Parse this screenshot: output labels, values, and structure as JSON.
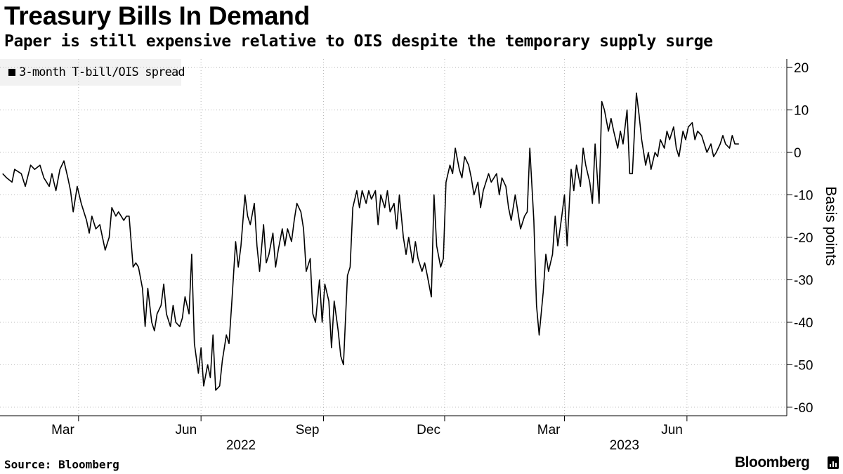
{
  "chart_data": {
    "type": "line",
    "title": "Treasury Bills In Demand",
    "subtitle": "Paper is still expensive relative to OIS despite the temporary supply surge",
    "ylabel": "Basis points",
    "ylim": [
      -62,
      22
    ],
    "y_ticks": [
      -60,
      -50,
      -40,
      -30,
      -20,
      -10,
      0,
      10,
      20
    ],
    "x_range": [
      "2022-01-01",
      "2023-08-15"
    ],
    "x_ticks": [
      {
        "label": "Mar",
        "date": "2022-03-01"
      },
      {
        "label": "Jun",
        "date": "2022-06-01"
      },
      {
        "label": "Sep",
        "date": "2022-09-01"
      },
      {
        "label": "Dec",
        "date": "2022-12-01"
      },
      {
        "label": "Mar",
        "date": "2023-03-01"
      },
      {
        "label": "Jun",
        "date": "2023-06-01"
      }
    ],
    "year_labels": [
      {
        "label": "2022",
        "date": "2022-07-01"
      },
      {
        "label": "2023",
        "date": "2023-04-15"
      }
    ],
    "grid": "vertical dotted + horizontal dotted",
    "legend_position": "top-left",
    "series": [
      {
        "name": "3-month T-bill/OIS spread",
        "color": "#000000",
        "points": [
          [
            "2022-01-03",
            -5
          ],
          [
            "2022-01-06",
            -6
          ],
          [
            "2022-01-10",
            -7
          ],
          [
            "2022-01-12",
            -4
          ],
          [
            "2022-01-17",
            -5
          ],
          [
            "2022-01-20",
            -8
          ],
          [
            "2022-01-24",
            -3
          ],
          [
            "2022-01-27",
            -4
          ],
          [
            "2022-01-31",
            -3
          ],
          [
            "2022-02-03",
            -6
          ],
          [
            "2022-02-07",
            -8
          ],
          [
            "2022-02-09",
            -5
          ],
          [
            "2022-02-12",
            -9
          ],
          [
            "2022-02-15",
            -4
          ],
          [
            "2022-02-18",
            -2
          ],
          [
            "2022-02-21",
            -6
          ],
          [
            "2022-02-23",
            -9
          ],
          [
            "2022-02-25",
            -14
          ],
          [
            "2022-02-28",
            -8
          ],
          [
            "2022-03-03",
            -12
          ],
          [
            "2022-03-07",
            -16
          ],
          [
            "2022-03-09",
            -19
          ],
          [
            "2022-03-11",
            -15
          ],
          [
            "2022-03-14",
            -18
          ],
          [
            "2022-03-17",
            -17
          ],
          [
            "2022-03-21",
            -23
          ],
          [
            "2022-03-24",
            -20
          ],
          [
            "2022-03-26",
            -13
          ],
          [
            "2022-03-29",
            -15
          ],
          [
            "2022-03-31",
            -14
          ],
          [
            "2022-04-04",
            -16
          ],
          [
            "2022-04-06",
            -15
          ],
          [
            "2022-04-08",
            -15
          ],
          [
            "2022-04-11",
            -27
          ],
          [
            "2022-04-13",
            -26
          ],
          [
            "2022-04-15",
            -27
          ],
          [
            "2022-04-18",
            -32
          ],
          [
            "2022-04-20",
            -41
          ],
          [
            "2022-04-22",
            -32
          ],
          [
            "2022-04-25",
            -40
          ],
          [
            "2022-04-27",
            -42
          ],
          [
            "2022-04-29",
            -38
          ],
          [
            "2022-05-02",
            -36
          ],
          [
            "2022-05-04",
            -31
          ],
          [
            "2022-05-06",
            -38
          ],
          [
            "2022-05-09",
            -41
          ],
          [
            "2022-05-11",
            -36
          ],
          [
            "2022-05-13",
            -40
          ],
          [
            "2022-05-16",
            -41
          ],
          [
            "2022-05-18",
            -39
          ],
          [
            "2022-05-20",
            -34
          ],
          [
            "2022-05-23",
            -38
          ],
          [
            "2022-05-25",
            -24
          ],
          [
            "2022-05-27",
            -45
          ],
          [
            "2022-05-30",
            -52
          ],
          [
            "2022-06-01",
            -46
          ],
          [
            "2022-06-03",
            -55
          ],
          [
            "2022-06-06",
            -50
          ],
          [
            "2022-06-08",
            -53
          ],
          [
            "2022-06-10",
            -43
          ],
          [
            "2022-06-12",
            -56
          ],
          [
            "2022-06-15",
            -55
          ],
          [
            "2022-06-17",
            -49
          ],
          [
            "2022-06-20",
            -43
          ],
          [
            "2022-06-22",
            -45
          ],
          [
            "2022-06-24",
            -36
          ],
          [
            "2022-06-27",
            -21
          ],
          [
            "2022-06-29",
            -27
          ],
          [
            "2022-07-01",
            -22
          ],
          [
            "2022-07-04",
            -10
          ],
          [
            "2022-07-06",
            -15
          ],
          [
            "2022-07-08",
            -17
          ],
          [
            "2022-07-11",
            -12
          ],
          [
            "2022-07-13",
            -22
          ],
          [
            "2022-07-15",
            -28
          ],
          [
            "2022-07-18",
            -17
          ],
          [
            "2022-07-20",
            -26
          ],
          [
            "2022-07-22",
            -24
          ],
          [
            "2022-07-25",
            -19
          ],
          [
            "2022-07-27",
            -27
          ],
          [
            "2022-07-29",
            -23
          ],
          [
            "2022-08-01",
            -18
          ],
          [
            "2022-08-03",
            -22
          ],
          [
            "2022-08-05",
            -18
          ],
          [
            "2022-08-08",
            -21
          ],
          [
            "2022-08-10",
            -16
          ],
          [
            "2022-08-12",
            -12
          ],
          [
            "2022-08-15",
            -14
          ],
          [
            "2022-08-17",
            -18
          ],
          [
            "2022-08-19",
            -28
          ],
          [
            "2022-08-22",
            -25
          ],
          [
            "2022-08-24",
            -38
          ],
          [
            "2022-08-26",
            -40
          ],
          [
            "2022-08-29",
            -30
          ],
          [
            "2022-08-31",
            -40
          ],
          [
            "2022-09-02",
            -31
          ],
          [
            "2022-09-05",
            -35
          ],
          [
            "2022-09-07",
            -46
          ],
          [
            "2022-09-09",
            -35
          ],
          [
            "2022-09-12",
            -42
          ],
          [
            "2022-09-14",
            -48
          ],
          [
            "2022-09-16",
            -50
          ],
          [
            "2022-09-19",
            -29
          ],
          [
            "2022-09-21",
            -27
          ],
          [
            "2022-09-23",
            -13
          ],
          [
            "2022-09-26",
            -9
          ],
          [
            "2022-09-28",
            -13
          ],
          [
            "2022-09-30",
            -9
          ],
          [
            "2022-10-03",
            -12
          ],
          [
            "2022-10-05",
            -9
          ],
          [
            "2022-10-07",
            -11
          ],
          [
            "2022-10-10",
            -9
          ],
          [
            "2022-10-12",
            -17
          ],
          [
            "2022-10-14",
            -10
          ],
          [
            "2022-10-17",
            -13
          ],
          [
            "2022-10-19",
            -9
          ],
          [
            "2022-10-21",
            -14
          ],
          [
            "2022-10-24",
            -12
          ],
          [
            "2022-10-26",
            -18
          ],
          [
            "2022-10-28",
            -10
          ],
          [
            "2022-10-31",
            -20
          ],
          [
            "2022-11-02",
            -24
          ],
          [
            "2022-11-04",
            -20
          ],
          [
            "2022-11-07",
            -26
          ],
          [
            "2022-11-09",
            -21
          ],
          [
            "2022-11-11",
            -25
          ],
          [
            "2022-11-14",
            -28
          ],
          [
            "2022-11-16",
            -26
          ],
          [
            "2022-11-18",
            -29
          ],
          [
            "2022-11-21",
            -34
          ],
          [
            "2022-11-23",
            -10
          ],
          [
            "2022-11-25",
            -22
          ],
          [
            "2022-11-28",
            -27
          ],
          [
            "2022-11-30",
            -25
          ],
          [
            "2022-12-02",
            -7
          ],
          [
            "2022-12-05",
            -3
          ],
          [
            "2022-12-07",
            -5
          ],
          [
            "2022-12-09",
            1
          ],
          [
            "2022-12-12",
            -4
          ],
          [
            "2022-12-14",
            -6
          ],
          [
            "2022-12-16",
            -1
          ],
          [
            "2022-12-19",
            -3
          ],
          [
            "2022-12-21",
            -6
          ],
          [
            "2022-12-23",
            -10
          ],
          [
            "2022-12-26",
            -7
          ],
          [
            "2022-12-28",
            -13
          ],
          [
            "2022-12-30",
            -9
          ],
          [
            "2023-01-03",
            -5
          ],
          [
            "2023-01-05",
            -7
          ],
          [
            "2023-01-09",
            -5
          ],
          [
            "2023-01-11",
            -10
          ],
          [
            "2023-01-13",
            -6
          ],
          [
            "2023-01-16",
            -8
          ],
          [
            "2023-01-18",
            -13
          ],
          [
            "2023-01-20",
            -16
          ],
          [
            "2023-01-23",
            -10
          ],
          [
            "2023-01-25",
            -14
          ],
          [
            "2023-01-27",
            -18
          ],
          [
            "2023-01-30",
            -15
          ],
          [
            "2023-02-01",
            -14
          ],
          [
            "2023-02-03",
            1
          ],
          [
            "2023-02-06",
            -16
          ],
          [
            "2023-02-08",
            -36
          ],
          [
            "2023-02-10",
            -43
          ],
          [
            "2023-02-13",
            -33
          ],
          [
            "2023-02-15",
            -24
          ],
          [
            "2023-02-17",
            -28
          ],
          [
            "2023-02-20",
            -24
          ],
          [
            "2023-02-22",
            -15
          ],
          [
            "2023-02-24",
            -22
          ],
          [
            "2023-02-27",
            -15
          ],
          [
            "2023-03-01",
            -10
          ],
          [
            "2023-03-03",
            -22
          ],
          [
            "2023-03-06",
            -4
          ],
          [
            "2023-03-08",
            -9
          ],
          [
            "2023-03-10",
            -3
          ],
          [
            "2023-03-13",
            -8
          ],
          [
            "2023-03-15",
            1
          ],
          [
            "2023-03-17",
            -3
          ],
          [
            "2023-03-20",
            -7
          ],
          [
            "2023-03-22",
            -12
          ],
          [
            "2023-03-24",
            2
          ],
          [
            "2023-03-27",
            -12
          ],
          [
            "2023-03-29",
            12
          ],
          [
            "2023-03-31",
            10
          ],
          [
            "2023-04-03",
            5
          ],
          [
            "2023-04-05",
            8
          ],
          [
            "2023-04-07",
            5
          ],
          [
            "2023-04-10",
            1
          ],
          [
            "2023-04-12",
            5
          ],
          [
            "2023-04-14",
            2
          ],
          [
            "2023-04-17",
            10
          ],
          [
            "2023-04-19",
            -5
          ],
          [
            "2023-04-21",
            -5
          ],
          [
            "2023-04-24",
            14
          ],
          [
            "2023-04-26",
            9
          ],
          [
            "2023-04-28",
            3
          ],
          [
            "2023-05-01",
            -3
          ],
          [
            "2023-05-03",
            0
          ],
          [
            "2023-05-05",
            -4
          ],
          [
            "2023-05-08",
            0
          ],
          [
            "2023-05-10",
            -1
          ],
          [
            "2023-05-12",
            3
          ],
          [
            "2023-05-15",
            1
          ],
          [
            "2023-05-17",
            5
          ],
          [
            "2023-05-19",
            3
          ],
          [
            "2023-05-22",
            6
          ],
          [
            "2023-05-24",
            1
          ],
          [
            "2023-05-26",
            -1
          ],
          [
            "2023-05-29",
            5
          ],
          [
            "2023-05-31",
            3
          ],
          [
            "2023-06-02",
            6
          ],
          [
            "2023-06-05",
            7
          ],
          [
            "2023-06-07",
            3
          ],
          [
            "2023-06-09",
            5
          ],
          [
            "2023-06-12",
            4
          ],
          [
            "2023-06-14",
            2
          ],
          [
            "2023-06-16",
            0
          ],
          [
            "2023-06-19",
            2
          ],
          [
            "2023-06-21",
            -1
          ],
          [
            "2023-06-23",
            0
          ],
          [
            "2023-06-26",
            2
          ],
          [
            "2023-06-28",
            4
          ],
          [
            "2023-06-30",
            2
          ],
          [
            "2023-07-03",
            1
          ],
          [
            "2023-07-05",
            4
          ],
          [
            "2023-07-07",
            2
          ],
          [
            "2023-07-10",
            2
          ]
        ]
      }
    ]
  },
  "legend_label": "3-month T-bill/OIS spread",
  "footer": {
    "source": "Source: Bloomberg",
    "brand": "Bloomberg"
  }
}
